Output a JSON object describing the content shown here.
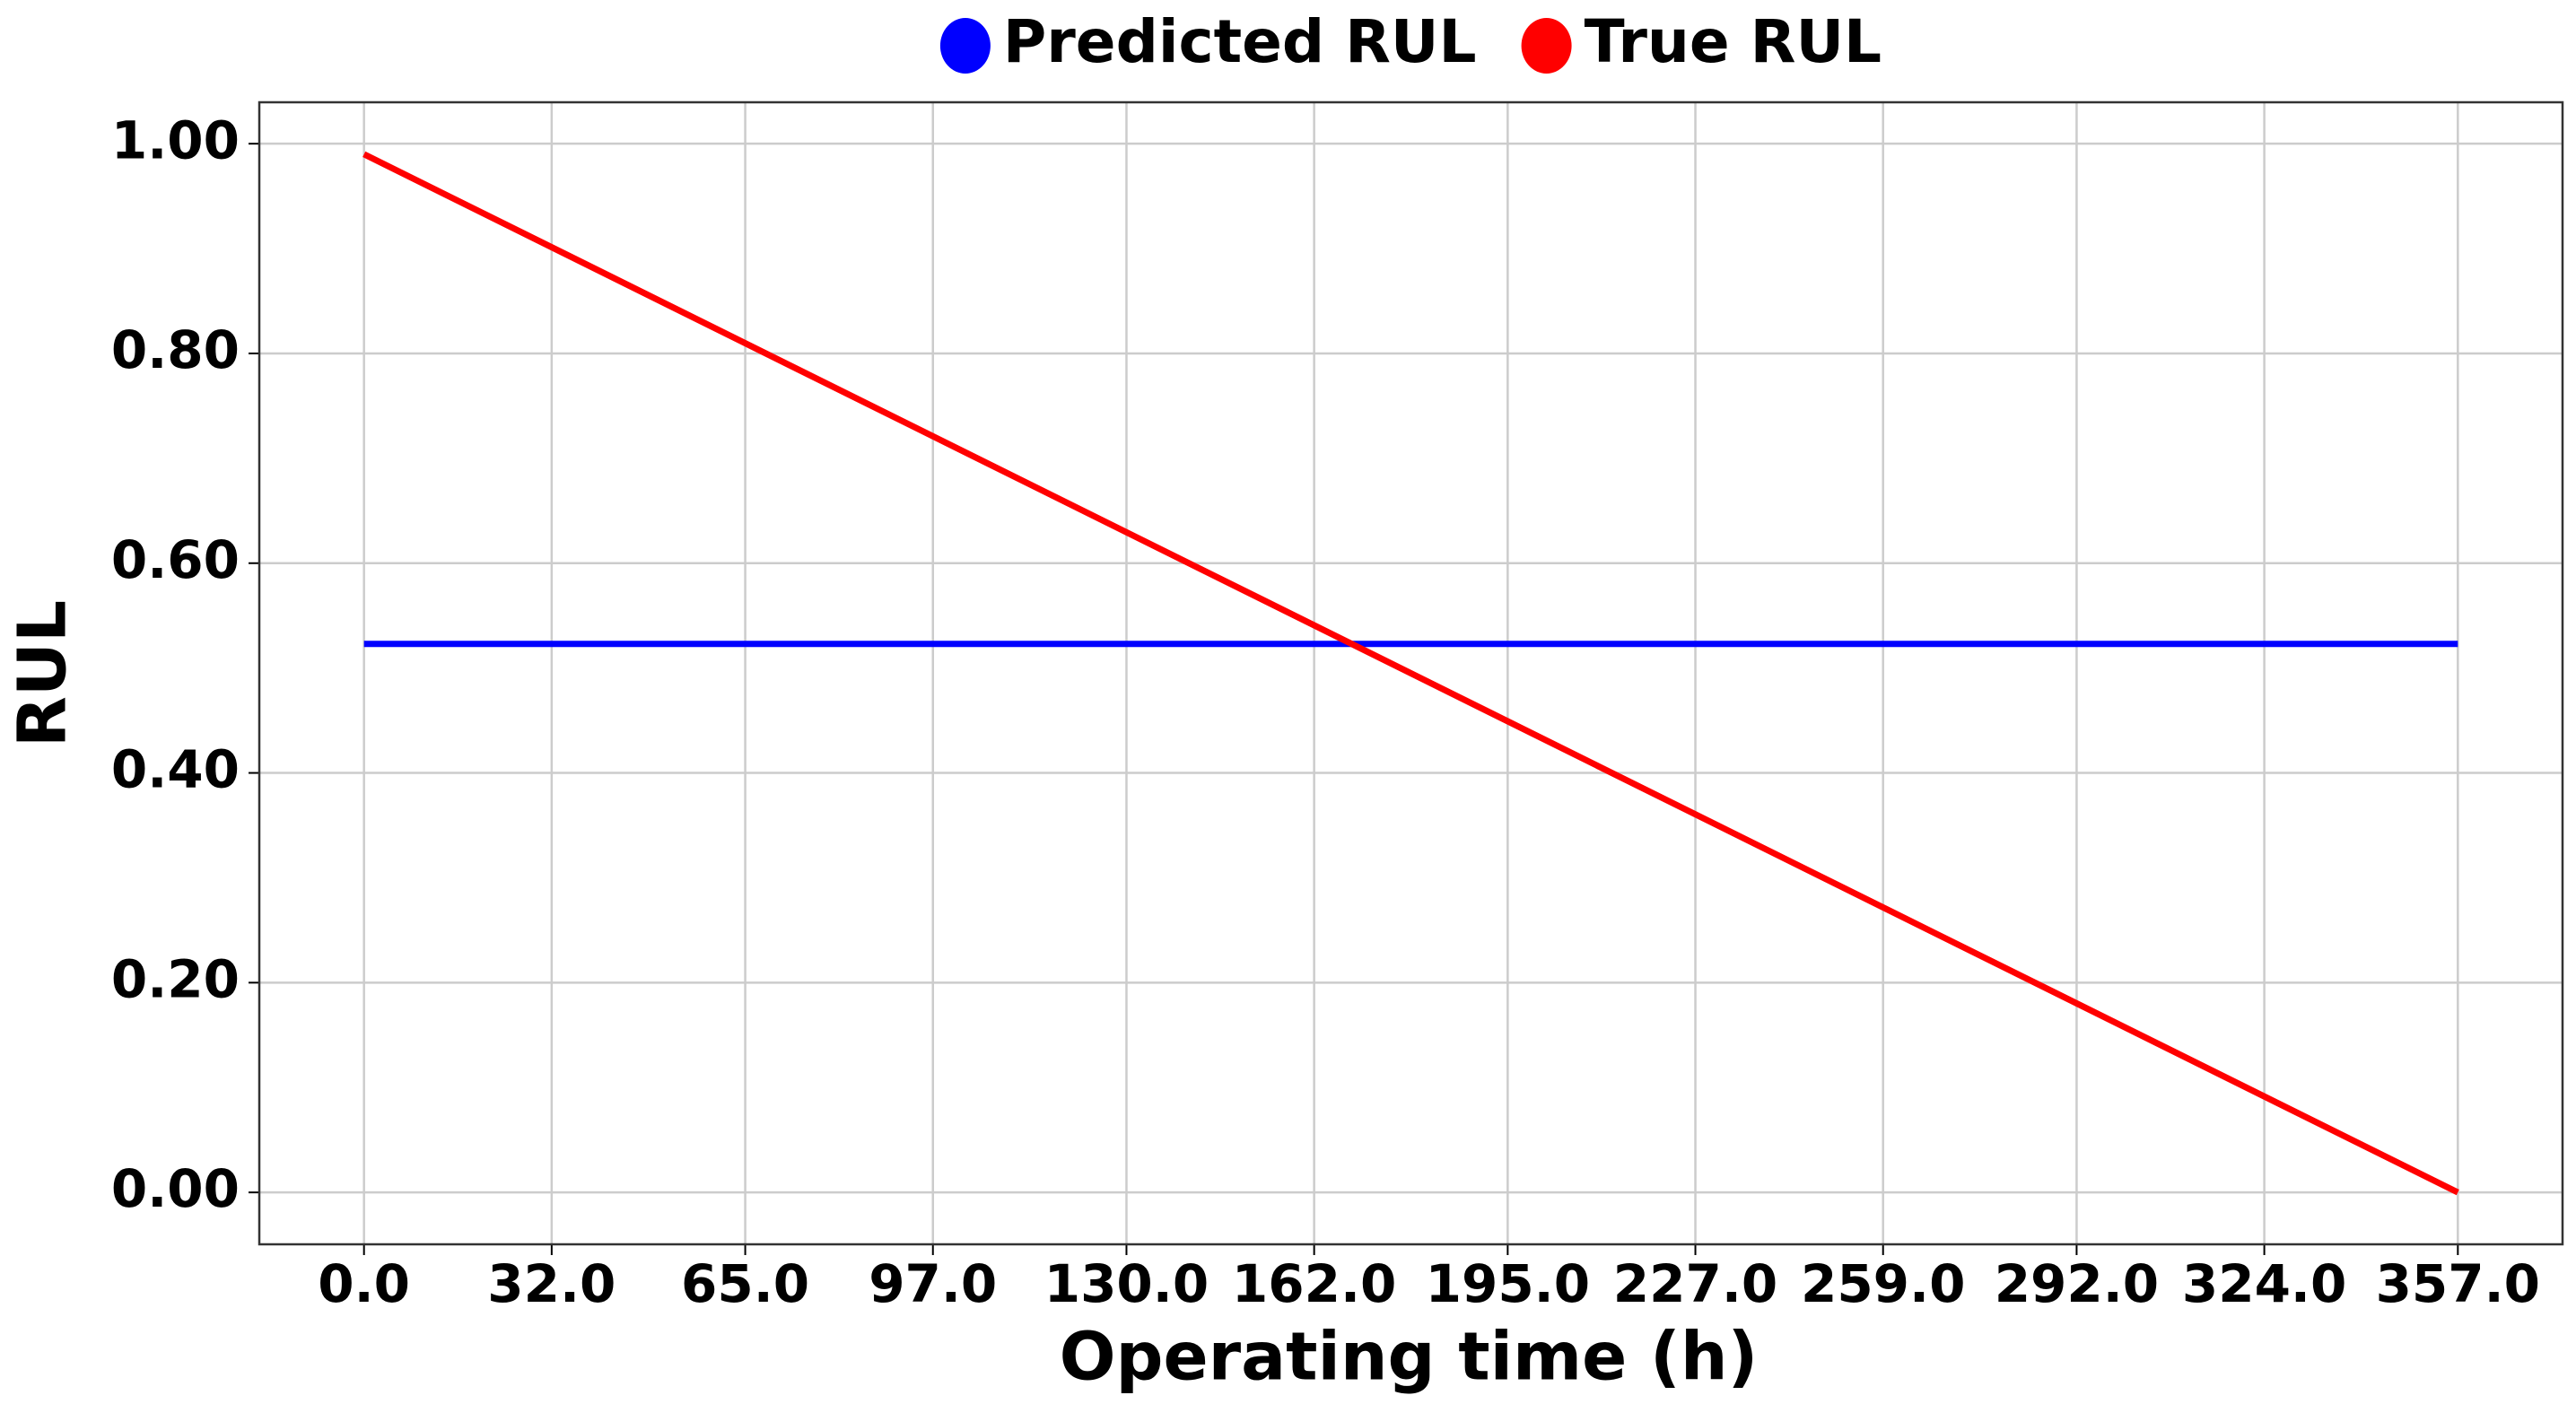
{
  "chart_data": {
    "type": "line",
    "x_label": "Operating time (h)",
    "y_label": "RUL",
    "x": [
      0,
      357
    ],
    "series": [
      {
        "name": "Predicted RUL",
        "color": "#0000ff",
        "values": [
          0.523,
          0.523
        ]
      },
      {
        "name": "True RUL",
        "color": "#ff0000",
        "values": [
          0.99,
          0.0
        ]
      }
    ],
    "xlim": [
      -17.85,
      374.85
    ],
    "xticks": [
      {
        "value": 0,
        "label": "0.0"
      },
      {
        "value": 32,
        "label": "32.0"
      },
      {
        "value": 65,
        "label": "65.0"
      },
      {
        "value": 97,
        "label": "97.0"
      },
      {
        "value": 130,
        "label": "130.0"
      },
      {
        "value": 162,
        "label": "162.0"
      },
      {
        "value": 195,
        "label": "195.0"
      },
      {
        "value": 227,
        "label": "227.0"
      },
      {
        "value": 259,
        "label": "259.0"
      },
      {
        "value": 292,
        "label": "292.0"
      },
      {
        "value": 324,
        "label": "324.0"
      },
      {
        "value": 357,
        "label": "357.0"
      }
    ],
    "ylim": [
      -0.0495,
      1.0395
    ],
    "yticks": [
      {
        "value": 0,
        "label": "0.00"
      },
      {
        "value": 0.2,
        "label": "0.20"
      },
      {
        "value": 0.4,
        "label": "0.40"
      },
      {
        "value": 0.6,
        "label": "0.60"
      },
      {
        "value": 0.8,
        "label": "0.80"
      },
      {
        "value": 1.0,
        "label": "1.00"
      }
    ],
    "grid": true,
    "legend": "upper center"
  }
}
